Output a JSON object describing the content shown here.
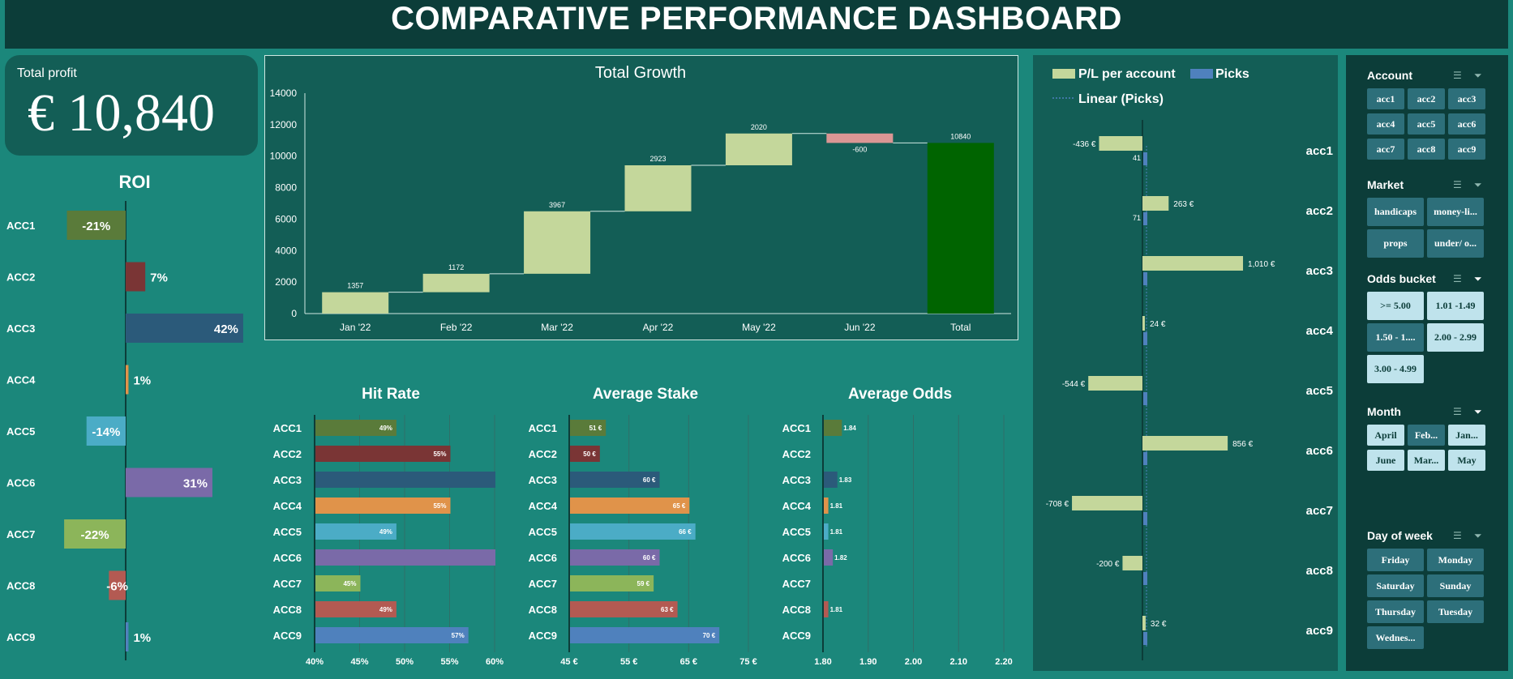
{
  "header": {
    "title": "COMPARATIVE PERFORMANCE DASHBOARD"
  },
  "profit": {
    "label": "Total profit",
    "value": "€ 10,840"
  },
  "colors": {
    "acc1": "#5a7b3a",
    "acc2": "#7a3535",
    "acc3": "#2b5a7a",
    "acc4": "#e0934a",
    "acc5": "#4bacc6",
    "acc6": "#7a6aa8",
    "acc7": "#8cb55a",
    "acc8": "#b35a52",
    "acc9": "#4f81bd",
    "waterfall_increase": "#c4d79b",
    "waterfall_decrease": "#da9694",
    "waterfall_total": "#006400",
    "pl_bar": "#c4d79b",
    "picks_bar": "#4f81bd"
  },
  "chart_data": [
    {
      "id": "roi",
      "type": "bar",
      "title": "ROI",
      "categories": [
        "ACC1",
        "ACC2",
        "ACC3",
        "ACC4",
        "ACC5",
        "ACC6",
        "ACC7",
        "ACC8",
        "ACC9"
      ],
      "values": [
        -21,
        7,
        42,
        1,
        -14,
        31,
        -22,
        -6,
        1
      ],
      "value_labels": [
        "-21%",
        "7%",
        "42%",
        "1%",
        "-14%",
        "31%",
        "-22%",
        "-6%",
        "1%"
      ],
      "orientation": "horizontal"
    },
    {
      "id": "growth",
      "type": "bar",
      "subtype": "waterfall",
      "title": "Total Growth",
      "categories": [
        "Jan '22",
        "Feb '22",
        "Mar '22",
        "Apr '22",
        "May '22",
        "Jun '22",
        "Total"
      ],
      "values": [
        1357,
        1172,
        3967,
        2923,
        2020,
        -600,
        10840
      ],
      "value_labels": [
        "1357",
        "1172",
        "3967",
        "2923",
        "2020",
        "-600",
        "10840"
      ],
      "ylim": [
        0,
        14000
      ],
      "yticks": [
        "0",
        "2000",
        "4000",
        "6000",
        "8000",
        "10000",
        "12000",
        "14000"
      ],
      "grid": false
    },
    {
      "id": "hit_rate",
      "type": "bar",
      "title": "Hit Rate",
      "orientation": "horizontal",
      "categories": [
        "ACC1",
        "ACC2",
        "ACC3",
        "ACC4",
        "ACC5",
        "ACC6",
        "ACC7",
        "ACC8",
        "ACC9"
      ],
      "values": [
        49,
        55,
        60,
        55,
        49,
        60,
        45,
        49,
        57
      ],
      "value_labels": [
        "49%",
        "55%",
        "",
        "55%",
        "49%",
        "",
        "45%",
        "49%",
        "57%"
      ],
      "xlim": [
        40,
        60
      ],
      "xticks": [
        "40%",
        "45%",
        "50%",
        "55%",
        "60%"
      ],
      "grid": true
    },
    {
      "id": "avg_stake",
      "type": "bar",
      "title": "Average Stake",
      "orientation": "horizontal",
      "categories": [
        "ACC1",
        "ACC2",
        "ACC3",
        "ACC4",
        "ACC5",
        "ACC6",
        "ACC7",
        "ACC8",
        "ACC9"
      ],
      "values": [
        51,
        50,
        60,
        65,
        66,
        60,
        59,
        63,
        70
      ],
      "value_labels": [
        "51 €",
        "50 €",
        "60 €",
        "65 €",
        "66 €",
        "60 €",
        "59 €",
        "63 €",
        "70 €"
      ],
      "xlim": [
        45,
        75
      ],
      "xticks": [
        "45 €",
        "55 €",
        "65 €",
        "75 €"
      ],
      "grid": true
    },
    {
      "id": "avg_odds",
      "type": "bar",
      "title": "Average Odds",
      "orientation": "horizontal",
      "categories": [
        "ACC1",
        "ACC2",
        "ACC3",
        "ACC4",
        "ACC5",
        "ACC6",
        "ACC7",
        "ACC8",
        "ACC9"
      ],
      "values": [
        1.84,
        null,
        1.83,
        1.81,
        1.81,
        1.82,
        null,
        1.81,
        null
      ],
      "value_labels": [
        "1.84",
        "",
        "1.83",
        "1.81",
        "1.81",
        "1.82",
        "",
        "1.81",
        ""
      ],
      "xlim": [
        1.8,
        2.2
      ],
      "xticks": [
        "1.80",
        "1.90",
        "2.00",
        "2.10",
        "2.20"
      ],
      "grid": true
    },
    {
      "id": "pl_picks",
      "type": "bar",
      "orientation": "horizontal",
      "categories": [
        "acc1",
        "acc2",
        "acc3",
        "acc4",
        "acc5",
        "acc6",
        "acc7",
        "acc8",
        "acc9"
      ],
      "legend": [
        "P/L per account",
        "Picks",
        "Linear (Picks)"
      ],
      "series": [
        {
          "name": "P/L per account",
          "values": [
            -436,
            263,
            1010,
            24,
            -544,
            856,
            -708,
            -200,
            32
          ],
          "value_labels": [
            "-436 €",
            "263 €",
            "1,010 €",
            "24 €",
            "-544 €",
            "856 €",
            "-708 €",
            "-200 €",
            "32 €"
          ]
        },
        {
          "name": "Picks",
          "values": [
            41,
            71,
            null,
            null,
            null,
            null,
            null,
            null,
            null
          ],
          "value_labels": [
            "41",
            "71",
            "",
            "",
            "",
            "",
            "",
            "",
            ""
          ]
        }
      ]
    }
  ],
  "slicers": [
    {
      "title": "Account",
      "items": [
        {
          "label": "acc1",
          "state": "dark"
        },
        {
          "label": "acc2",
          "state": "dark"
        },
        {
          "label": "acc3",
          "state": "dark"
        },
        {
          "label": "acc4",
          "state": "dark"
        },
        {
          "label": "acc5",
          "state": "dark"
        },
        {
          "label": "acc6",
          "state": "dark"
        },
        {
          "label": "acc7",
          "state": "dark"
        },
        {
          "label": "acc8",
          "state": "dark"
        },
        {
          "label": "acc9",
          "state": "dark"
        }
      ]
    },
    {
      "title": "Market",
      "items": [
        {
          "label": "handicaps",
          "state": "dark"
        },
        {
          "label": "money-li...",
          "state": "dark"
        },
        {
          "label": "props",
          "state": "dark"
        },
        {
          "label": "under/ o...",
          "state": "dark"
        }
      ]
    },
    {
      "title": "Odds bucket",
      "items": [
        {
          "label": ">= 5.00",
          "state": "light"
        },
        {
          "label": "1.01 -1.49",
          "state": "light"
        },
        {
          "label": "1.50 - 1....",
          "state": "dark"
        },
        {
          "label": "2.00 - 2.99",
          "state": "light"
        },
        {
          "label": "3.00 - 4.99",
          "state": "light"
        }
      ]
    },
    {
      "title": "Month",
      "items": [
        {
          "label": "April",
          "state": "light"
        },
        {
          "label": "Feb...",
          "state": "dark"
        },
        {
          "label": "Jan...",
          "state": "light"
        },
        {
          "label": "June",
          "state": "light"
        },
        {
          "label": "Mar...",
          "state": "light"
        },
        {
          "label": "May",
          "state": "light"
        }
      ]
    },
    {
      "title": "Day of week",
      "items": [
        {
          "label": "Friday",
          "state": "dark"
        },
        {
          "label": "Monday",
          "state": "dark"
        },
        {
          "label": "Saturday",
          "state": "dark"
        },
        {
          "label": "Sunday",
          "state": "dark"
        },
        {
          "label": "Thursday",
          "state": "dark"
        },
        {
          "label": "Tuesday",
          "state": "dark"
        },
        {
          "label": "Wednes...",
          "state": "dark"
        }
      ]
    }
  ]
}
